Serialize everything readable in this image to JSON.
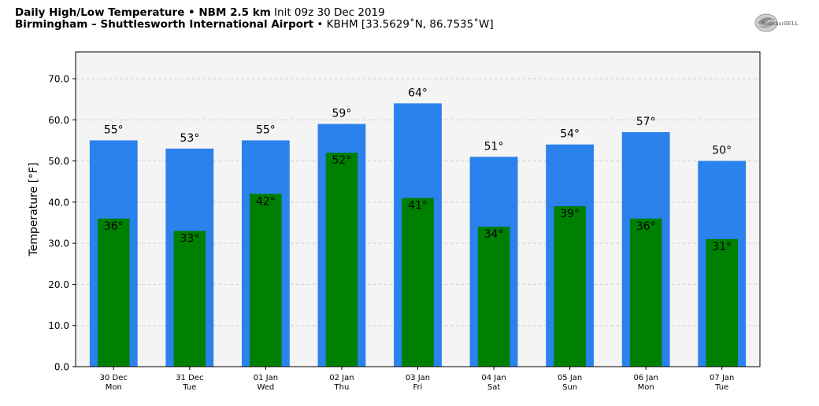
{
  "header": {
    "line1_bold": "Daily High/Low Temperature • NBM 2.5 km",
    "line1_rest": " Init 09z 30 Dec 2019",
    "line2_bold": "Birmingham – Shuttlesworth International Airport",
    "line2_rest": " • KBHM [33.5629˚N, 86.7535˚W]"
  },
  "logo": {
    "text": "WeatherBELL",
    "icon": "weatherbell-swirl-logo"
  },
  "chart_data": {
    "type": "bar",
    "categories": [
      {
        "date": "30 Dec",
        "day": "Mon"
      },
      {
        "date": "31 Dec",
        "day": "Tue"
      },
      {
        "date": "01 Jan",
        "day": "Wed"
      },
      {
        "date": "02 Jan",
        "day": "Thu"
      },
      {
        "date": "03 Jan",
        "day": "Fri"
      },
      {
        "date": "04 Jan",
        "day": "Sat"
      },
      {
        "date": "05 Jan",
        "day": "Sun"
      },
      {
        "date": "06 Jan",
        "day": "Mon"
      },
      {
        "date": "07 Jan",
        "day": "Tue"
      }
    ],
    "series": [
      {
        "values": [
          55,
          53,
          55,
          59,
          64,
          51,
          54,
          57,
          50
        ],
        "color": "#2b82ec"
      },
      {
        "values": [
          36,
          33,
          42,
          52,
          41,
          34,
          39,
          36,
          31
        ],
        "color": "#008000"
      }
    ],
    "ylabel": "Temperature [°F]",
    "ylim": [
      0,
      76.5
    ],
    "yticks": [
      "0.0",
      "10.0",
      "20.0",
      "30.0",
      "40.0",
      "50.0",
      "60.0",
      "70.0"
    ],
    "label_suffix": "°",
    "grid": true,
    "plot_background": "#f4f4f4"
  }
}
